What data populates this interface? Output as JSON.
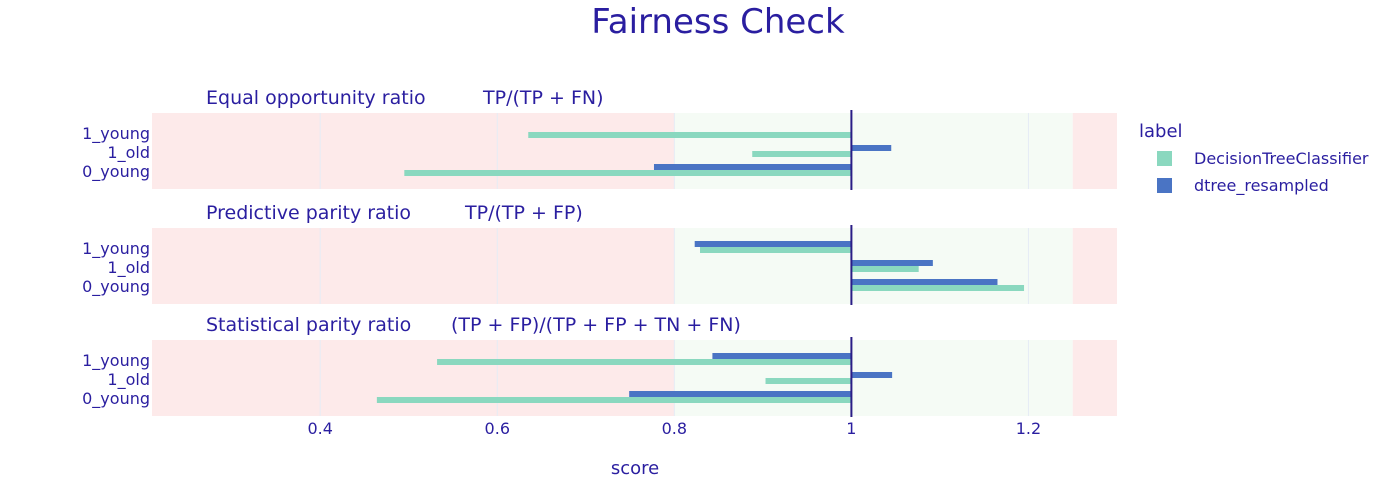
{
  "chart_data": {
    "type": "bar",
    "orientation": "horizontal",
    "title": "Fairness Check",
    "xlabel": "score",
    "xlim": [
      0.21,
      1.3
    ],
    "x_ticks": [
      0.4,
      0.6,
      0.8,
      1.0,
      1.2
    ],
    "x_tick_labels": [
      "0.4",
      "0.6",
      "0.8",
      "1",
      "1.2"
    ],
    "baseline": 1.0,
    "fair_region": [
      0.8,
      1.25
    ],
    "categories": [
      "1_young",
      "1_old",
      "0_young"
    ],
    "legend": {
      "title": "label",
      "entries": [
        "DecisionTreeClassifier",
        "dtree_resampled"
      ],
      "placement": "top-right"
    },
    "colors": {
      "title": "#2a1ea0",
      "DecisionTreeClassifier": "#8ad8bf",
      "dtree_resampled": "#4a74c4",
      "unfair_region": "#fdeaea",
      "fair_region": "#f5fbf5",
      "baseline": "#2a1d86"
    },
    "panels": [
      {
        "title": "Equal opportunity ratio",
        "formula": "TP/(TP + FN)",
        "series": [
          {
            "name": "DecisionTreeClassifier",
            "values": [
              0.635,
              0.888,
              0.495
            ]
          },
          {
            "name": "dtree_resampled",
            "values": [
              1.0,
              1.045,
              0.777
            ]
          }
        ]
      },
      {
        "title": "Predictive parity ratio",
        "formula": "TP/(TP + FP)",
        "series": [
          {
            "name": "DecisionTreeClassifier",
            "values": [
              0.829,
              1.076,
              1.195
            ]
          },
          {
            "name": "dtree_resampled",
            "values": [
              0.823,
              1.092,
              1.165
            ]
          }
        ]
      },
      {
        "title": "Statistical parity ratio",
        "formula": "(TP + FP)/(TP + FP + TN + FN)",
        "series": [
          {
            "name": "DecisionTreeClassifier",
            "values": [
              0.532,
              0.903,
              0.464
            ]
          },
          {
            "name": "dtree_resampled",
            "values": [
              0.843,
              1.046,
              0.749
            ]
          }
        ]
      }
    ]
  }
}
